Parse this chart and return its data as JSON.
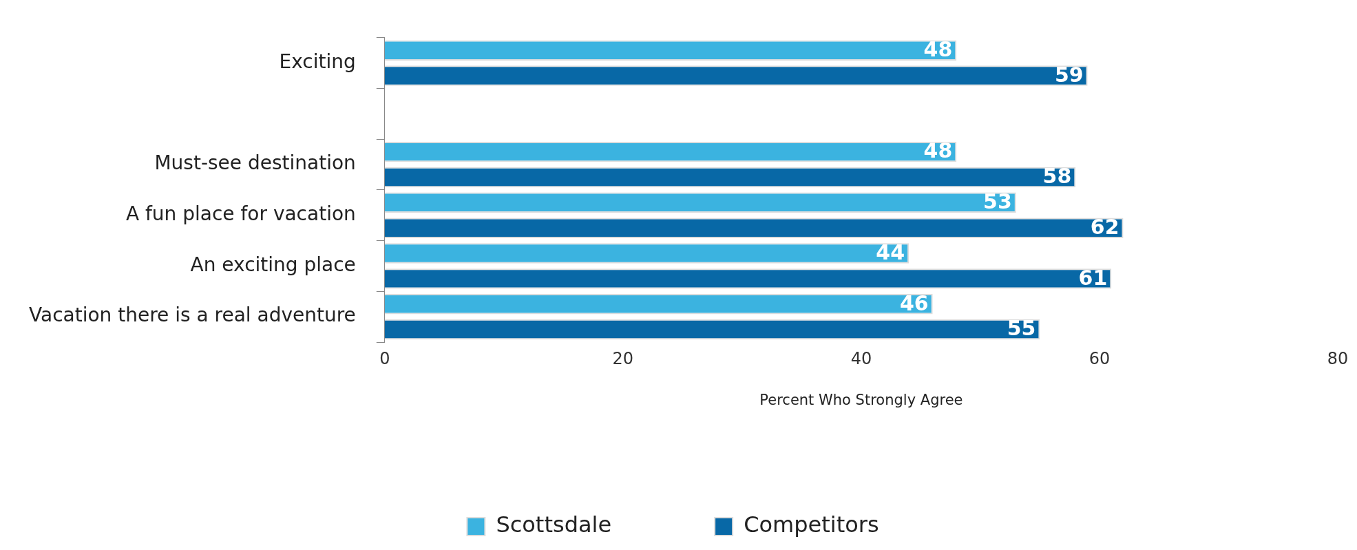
{
  "chart_data": {
    "type": "bar",
    "orientation": "horizontal",
    "xlabel": "Percent Who Strongly Agree",
    "categories": [
      "Exciting",
      null,
      "Must-see destination",
      "A fun place for vacation",
      "An exciting place",
      "Vacation there is a real adventure"
    ],
    "series": [
      {
        "name": "Scottsdale",
        "color": "#3bb3e0",
        "values": [
          48,
          null,
          48,
          53,
          44,
          46
        ]
      },
      {
        "name": "Competitors",
        "color": "#0868a6",
        "values": [
          59,
          null,
          58,
          62,
          61,
          55
        ]
      }
    ],
    "xlim": [
      0,
      80
    ],
    "xticks": [
      0,
      20,
      40,
      60,
      80
    ],
    "grid": false,
    "legend": "bottom",
    "data_labels": true
  }
}
